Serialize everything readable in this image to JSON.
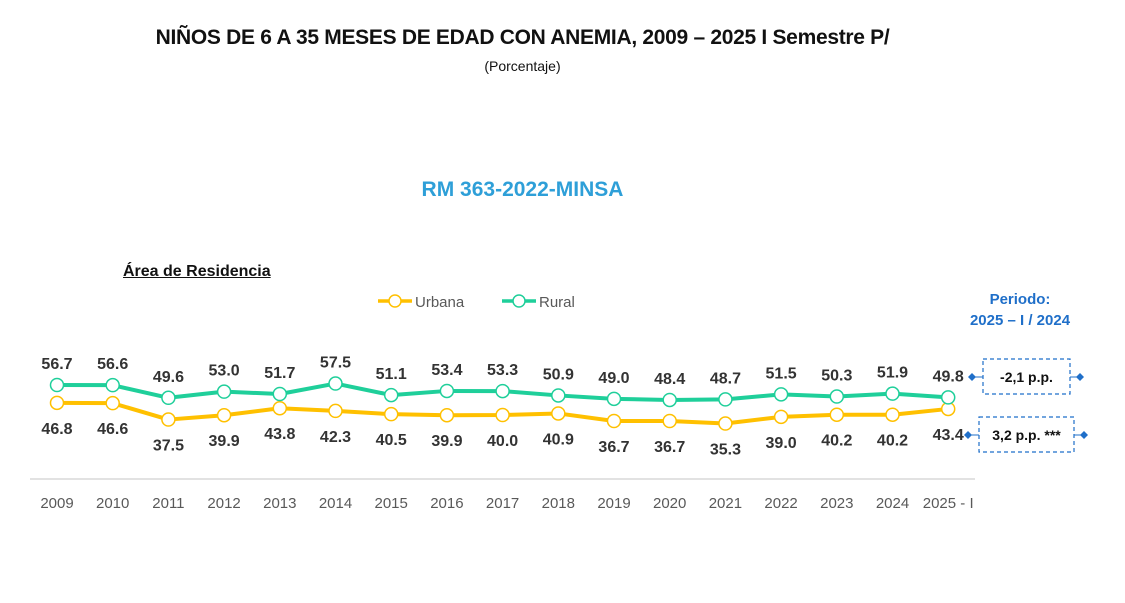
{
  "chart_data": {
    "type": "line",
    "title": "NIÑOS DE 6 A 35 MESES DE EDAD CON ANEMIA, 2009 – 2025 I Semestre P/",
    "subtitle": "(Porcentaje)",
    "annotation_top": "RM 363-2022-MINSA",
    "legend_title": "Área de Residencia",
    "legend_placement": "top",
    "categories": [
      "2009",
      "2010",
      "2011",
      "2012",
      "2013",
      "2014",
      "2015",
      "2016",
      "2017",
      "2018",
      "2019",
      "2020",
      "2021",
      "2022",
      "2023",
      "2024",
      "2025 - I"
    ],
    "series": [
      {
        "name": "Urbana",
        "color": "#ffc000",
        "values": [
          46.8,
          46.6,
          37.5,
          39.9,
          43.8,
          42.3,
          40.5,
          39.9,
          40.0,
          40.9,
          36.7,
          36.7,
          35.3,
          39.0,
          40.2,
          40.2,
          43.4
        ]
      },
      {
        "name": "Rural",
        "color": "#1fcf9a",
        "values": [
          56.7,
          56.6,
          49.6,
          53.0,
          51.7,
          57.5,
          51.1,
          53.4,
          53.3,
          50.9,
          49.0,
          48.4,
          48.7,
          51.5,
          50.3,
          51.9,
          49.8
        ]
      }
    ],
    "grid": false,
    "periodo": {
      "label_line1": "Periodo:",
      "label_line2": "2025 – I / 2024",
      "rural_change": "-2,1 p.p.",
      "urbana_change": "3,2 p.p. ***",
      "color": "#1f6fc9"
    }
  }
}
